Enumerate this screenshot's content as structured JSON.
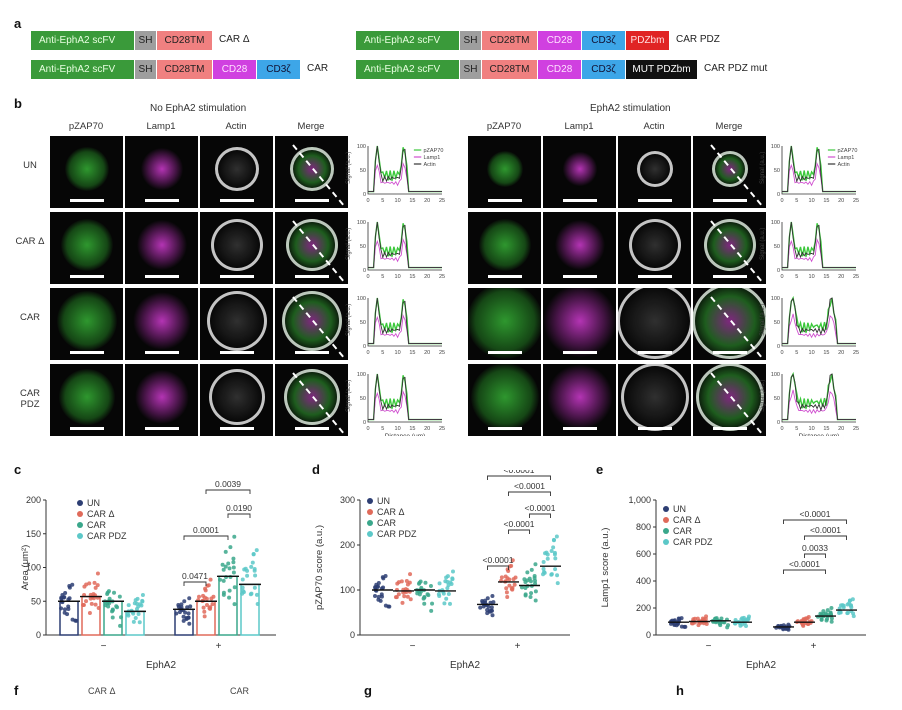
{
  "panel_a": {
    "letter": "a",
    "constructs": [
      {
        "segments": [
          "Anti-EphA2 scFV",
          "SH",
          "CD28TM"
        ],
        "name": "CAR Δ"
      },
      {
        "segments": [
          "Anti-EphA2 scFV",
          "SH",
          "CD28TM",
          "CD28",
          "CD3ζ"
        ],
        "name": "CAR"
      },
      {
        "segments": [
          "Anti-EphA2 scFV",
          "SH",
          "CD28TM",
          "CD28",
          "CD3ζ",
          "PDZbm"
        ],
        "name": "CAR PDZ"
      },
      {
        "segments": [
          "Anti-EphA2 scFV",
          "SH",
          "CD28TM",
          "CD28",
          "CD3ζ",
          "MUT PDZbm"
        ],
        "name": "CAR PDZ mut"
      }
    ]
  },
  "panel_b": {
    "letter": "b",
    "left_title": "No EphA2 stimulation",
    "right_title": "EphA2 stimulation",
    "columns": [
      "pZAP70",
      "Lamp1",
      "Actin",
      "Merge"
    ],
    "rows": [
      "UN",
      "CAR Δ",
      "CAR",
      "CAR PDZ"
    ],
    "legend": [
      "pZAP70",
      "Lamp1",
      "Actin"
    ],
    "ylabel": "Signal (a.u.)",
    "xlabel": "Distance (μm)",
    "yticks": [
      "0",
      "50",
      "100"
    ],
    "xticks": [
      "0",
      "5",
      "10",
      "15",
      "20",
      "25"
    ],
    "colors": {
      "pZAP70": "#3cc83c",
      "Lamp1": "#d050d0",
      "Actin": "#333333"
    }
  },
  "chart_data": [
    {
      "type": "bar",
      "panel": "c",
      "ylabel": "Area (μm²)",
      "xlabel": "EphA2",
      "group_labels": [
        "−",
        "+"
      ],
      "ylim": [
        0,
        200
      ],
      "yticks": [
        0,
        50,
        100,
        150,
        200
      ],
      "series": [
        {
          "name": "UN",
          "color": "#2d3e73",
          "values": [
            50,
            38
          ]
        },
        {
          "name": "CAR Δ",
          "color": "#e06a5a",
          "values": [
            57,
            50
          ]
        },
        {
          "name": "CAR",
          "color": "#3aa78b",
          "values": [
            50,
            87
          ]
        },
        {
          "name": "CAR PDZ",
          "color": "#5cc8c8",
          "values": [
            35,
            75
          ]
        }
      ],
      "pvalues": [
        "0.0471",
        "0.0001",
        "0.0190",
        "0.0039"
      ]
    },
    {
      "type": "scatter",
      "panel": "d",
      "ylabel": "pZAP70 score (a.u.)",
      "xlabel": "EphA2",
      "group_labels": [
        "−",
        "+"
      ],
      "ylim": [
        0,
        300
      ],
      "yticks": [
        0,
        100,
        200,
        300
      ],
      "series": [
        {
          "name": "UN",
          "color": "#2d3e73",
          "values": [
            100,
            68
          ]
        },
        {
          "name": "CAR Δ",
          "color": "#e06a5a",
          "values": [
            98,
            118
          ]
        },
        {
          "name": "CAR",
          "color": "#3aa78b",
          "values": [
            100,
            110
          ]
        },
        {
          "name": "CAR PDZ",
          "color": "#5cc8c8",
          "values": [
            98,
            153
          ]
        }
      ],
      "pvalues": [
        "<0.0001",
        "<0.0001",
        "<0.0001",
        "<0.0001",
        "<0.0001"
      ]
    },
    {
      "type": "scatter",
      "panel": "e",
      "ylabel": "Lamp1 score (a.u.)",
      "xlabel": "EphA2",
      "group_labels": [
        "−",
        "+"
      ],
      "ylim": [
        0,
        1000
      ],
      "yticks": [
        0,
        200,
        400,
        600,
        800,
        1000
      ],
      "ytick_labels": [
        "0",
        "200",
        "400",
        "600",
        "800",
        "1,000"
      ],
      "series": [
        {
          "name": "UN",
          "color": "#2d3e73",
          "values": [
            95,
            60
          ]
        },
        {
          "name": "CAR Δ",
          "color": "#e06a5a",
          "values": [
            100,
            95
          ]
        },
        {
          "name": "CAR",
          "color": "#3aa78b",
          "values": [
            105,
            140
          ]
        },
        {
          "name": "CAR PDZ",
          "color": "#5cc8c8",
          "values": [
            95,
            185
          ]
        }
      ],
      "pvalues": [
        "<0.0001",
        "0.0033",
        "<0.0001",
        "<0.0001"
      ]
    }
  ],
  "bottom": {
    "f": "f",
    "g": "g",
    "h": "h",
    "f_sub1": "CAR Δ",
    "f_sub2": "CAR"
  }
}
